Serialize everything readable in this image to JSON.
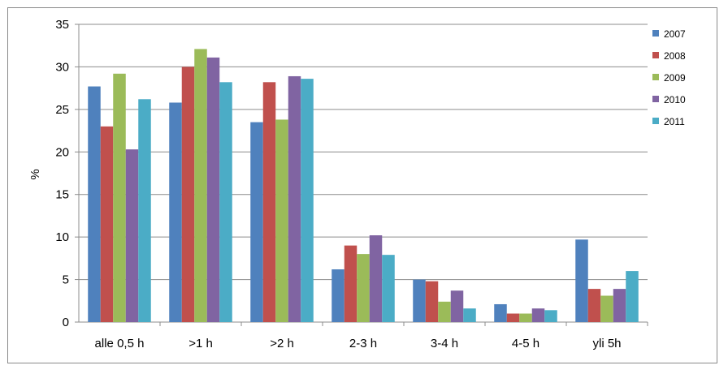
{
  "chart_data": {
    "type": "bar",
    "title": "",
    "xlabel": "",
    "ylabel": "%",
    "ylim": [
      0,
      35
    ],
    "yticks": [
      0,
      5,
      10,
      15,
      20,
      25,
      30,
      35
    ],
    "grid": "horizontal",
    "legend_position": "right",
    "categories": [
      "alle 0,5 h",
      ">1 h",
      ">2 h",
      "2-3 h",
      "3-4 h",
      "4-5 h",
      "yli 5h"
    ],
    "series": [
      {
        "name": "2007",
        "color": "#4F81BD",
        "values": [
          27.7,
          25.8,
          23.5,
          6.2,
          5.0,
          2.1,
          9.7
        ]
      },
      {
        "name": "2008",
        "color": "#C0504D",
        "values": [
          23.0,
          30.0,
          28.2,
          9.0,
          4.8,
          1.0,
          3.9
        ]
      },
      {
        "name": "2009",
        "color": "#9BBB59",
        "values": [
          29.2,
          32.1,
          23.8,
          8.0,
          2.4,
          1.0,
          3.1
        ]
      },
      {
        "name": "2010",
        "color": "#8064A2",
        "values": [
          20.3,
          31.1,
          28.9,
          10.2,
          3.7,
          1.6,
          3.9
        ]
      },
      {
        "name": "2011",
        "color": "#4BACC6",
        "values": [
          26.2,
          28.2,
          28.6,
          7.9,
          1.6,
          1.4,
          6.0
        ]
      }
    ]
  }
}
